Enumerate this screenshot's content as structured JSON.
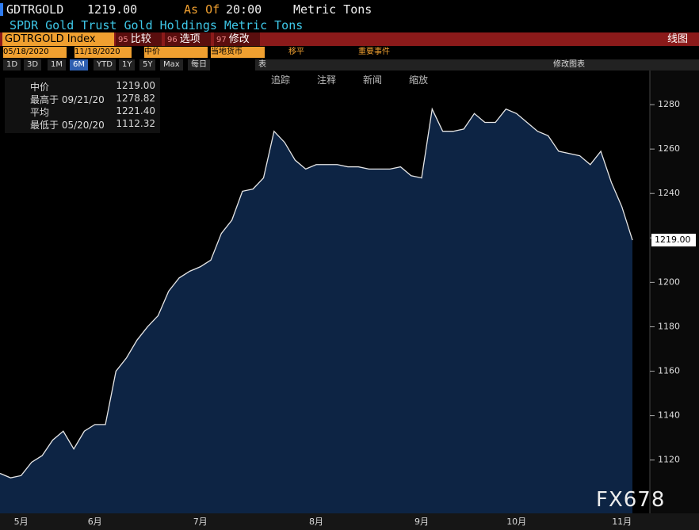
{
  "header": {
    "ticker": "GDTRGOLD",
    "price": "1219.00",
    "as_of": "As Of",
    "time": "20:00",
    "units": "Metric Tons",
    "description": "SPDR Gold Trust Gold Holdings Metric Tons"
  },
  "toolbar": {
    "security": "GDTRGOLD Index",
    "buttons": [
      {
        "code": "95",
        "label": "比较"
      },
      {
        "code": "96",
        "label": "选项"
      },
      {
        "code": "97",
        "label": "修改"
      }
    ],
    "chart_type": "线图"
  },
  "settings": {
    "start": "05/18/2020",
    "end": "11/18/2020",
    "field": "中价",
    "currency": "当地货币",
    "moving": "移平",
    "events": "重要事件"
  },
  "ranges": [
    "1D",
    "3D",
    "1M",
    "6M",
    "YTD",
    "1Y",
    "5Y",
    "Max"
  ],
  "frequency": "每日",
  "table": "表",
  "edit_chart": "修改图表",
  "chart_tools": [
    "追踪",
    "注释",
    "新闻",
    "缩放"
  ],
  "legend": [
    {
      "label": "中价",
      "value": "1219.00"
    },
    {
      "label": "最高于 09/21/20",
      "value": "1278.82"
    },
    {
      "label": "平均",
      "value": "1221.40"
    },
    {
      "label": "最低于 05/20/20",
      "value": "1112.32"
    }
  ],
  "watermark": "FX678",
  "chart_data": {
    "type": "area",
    "color": "#0d2444",
    "line_color": "#e6e6e6",
    "categories": [
      null,
      null,
      "5月",
      null,
      null,
      null,
      null,
      null,
      null,
      "6月",
      null,
      null,
      null,
      null,
      null,
      null,
      null,
      null,
      null,
      "7月",
      null,
      null,
      null,
      null,
      null,
      null,
      null,
      null,
      null,
      null,
      "8月",
      null,
      null,
      null,
      null,
      null,
      null,
      null,
      null,
      null,
      "9月",
      null,
      null,
      null,
      null,
      null,
      null,
      null,
      null,
      "10月",
      null,
      null,
      null,
      null,
      null,
      null,
      null,
      null,
      null,
      "11月",
      null
    ],
    "values": [
      1114,
      1112,
      1113,
      1119,
      1122,
      1129,
      1133,
      1125,
      1133,
      1136,
      1136,
      1160,
      1166,
      1174,
      1180,
      1185,
      1196,
      1202,
      1205,
      1207,
      1210,
      1222,
      1228,
      1241,
      1242,
      1247,
      1268,
      1263,
      1255,
      1251,
      1253,
      1253,
      1253,
      1252,
      1252,
      1251,
      1251,
      1251,
      1252,
      1248,
      1247,
      1278,
      1268,
      1268,
      1269,
      1276,
      1272,
      1272,
      1278,
      1276,
      1272,
      1268,
      1266,
      1259,
      1258,
      1257,
      1253,
      1259,
      1245,
      1234,
      1219
    ],
    "last_value_label": "1219.00",
    "ylim": [
      1096,
      1295
    ],
    "yticks": [
      1120,
      1140,
      1160,
      1180,
      1200,
      1220,
      1240,
      1260,
      1280
    ]
  }
}
